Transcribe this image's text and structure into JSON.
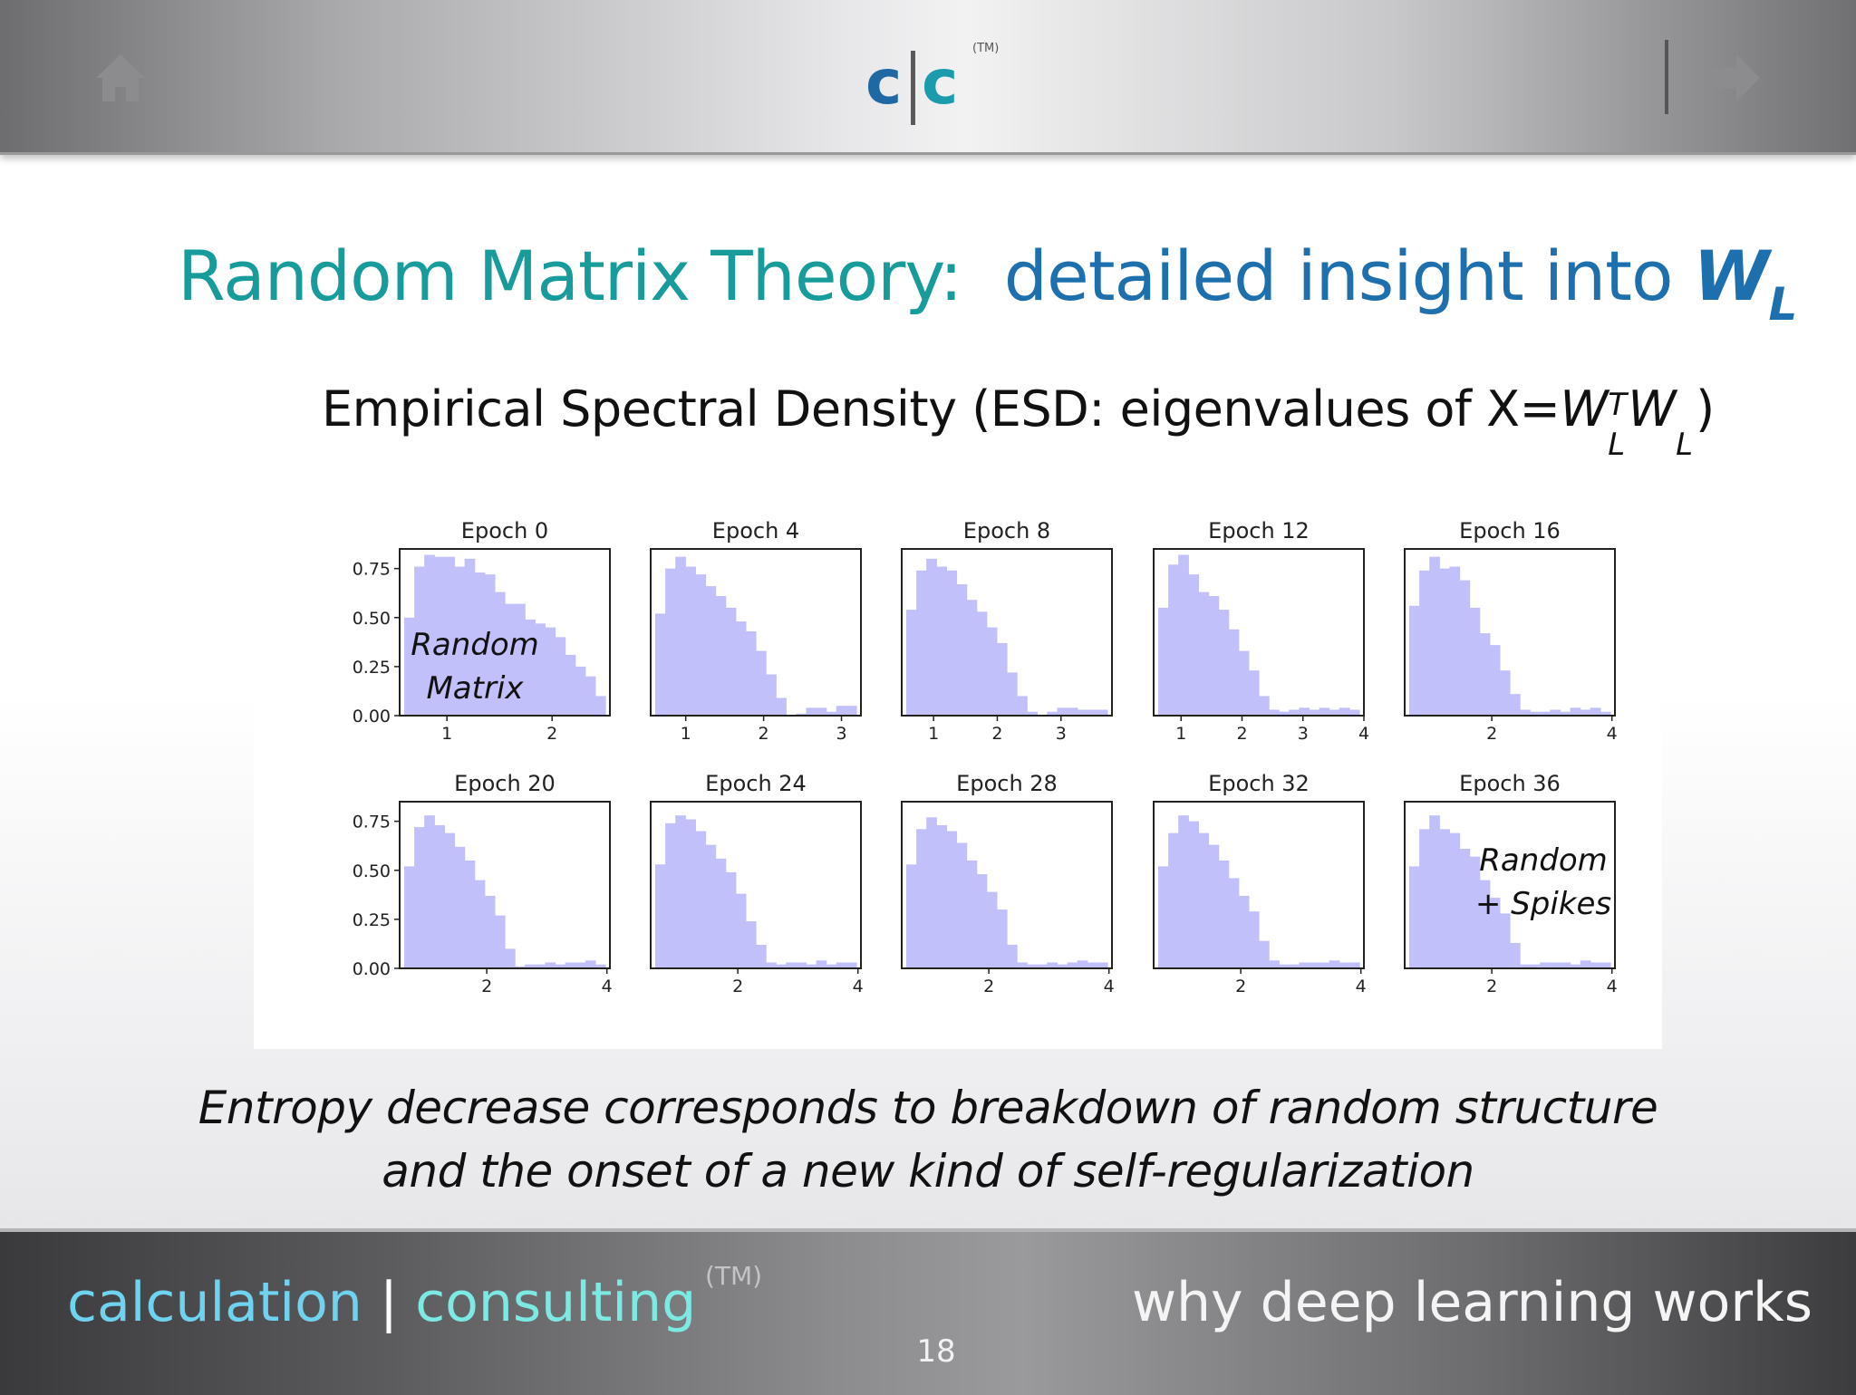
{
  "header": {
    "logo_left": "c",
    "logo_right": "c",
    "logo_tm": "(TM)",
    "home_icon": "home-icon",
    "next_icon": "arrow-right-icon"
  },
  "slide": {
    "title_part1": "Random Matrix Theory:",
    "title_part2": "detailed insight into",
    "title_symbol": "W",
    "title_sub": "L",
    "subtitle_text": "Empirical Spectral Density (ESD: eigenvalues of X=",
    "subtitle_w1": "W",
    "subtitle_sup": "T",
    "subtitle_sub1": "L",
    "subtitle_w2": "W",
    "subtitle_sub2": "L",
    "subtitle_close": ")",
    "caption_line1": "Entropy decrease corresponds to breakdown of random structure",
    "caption_line2": "and the onset of a new kind of self-regularization"
  },
  "footer": {
    "left_part1": "calculation",
    "separator": "|",
    "left_part2": "consulting",
    "tm": "(TM)",
    "right_text": "why deep learning works",
    "page_number": "18"
  },
  "colors": {
    "histogram_fill": "#c1c0fb",
    "title_teal": "#179b9b",
    "title_blue": "#1e6fad"
  },
  "chart_data": {
    "type": "bar",
    "layout": "2x5 grid of histograms",
    "yticks_row1": [
      "0.75",
      "0.50",
      "0.25",
      "0.00"
    ],
    "yticks_row2": [
      "0.75",
      "0.50",
      "0.25",
      "0.00"
    ],
    "ylim": [
      0,
      0.85
    ],
    "panels": [
      {
        "title": "Epoch 0",
        "xlim": [
          0.55,
          2.55
        ],
        "xticks": [
          1,
          2
        ],
        "values": [
          0.5,
          0.76,
          0.82,
          0.81,
          0.81,
          0.76,
          0.8,
          0.73,
          0.72,
          0.63,
          0.57,
          0.57,
          0.49,
          0.47,
          0.45,
          0.4,
          0.31,
          0.25,
          0.2,
          0.1
        ],
        "annotation": [
          "Random",
          "Matrix"
        ]
      },
      {
        "title": "Epoch 4",
        "xlim": [
          0.55,
          3.25
        ],
        "xticks": [
          1,
          2,
          3
        ],
        "values": [
          0.52,
          0.75,
          0.81,
          0.76,
          0.72,
          0.66,
          0.61,
          0.55,
          0.48,
          0.43,
          0.33,
          0.21,
          0.09,
          0,
          0.01,
          0.04,
          0.04,
          0.02,
          0.05,
          0.05
        ]
      },
      {
        "title": "Epoch 8",
        "xlim": [
          0.5,
          3.8
        ],
        "xticks": [
          1,
          2,
          3
        ],
        "values": [
          0.54,
          0.74,
          0.8,
          0.76,
          0.74,
          0.67,
          0.59,
          0.53,
          0.45,
          0.37,
          0.22,
          0.1,
          0.02,
          0,
          0.02,
          0.04,
          0.04,
          0.03,
          0.03,
          0.03
        ]
      },
      {
        "title": "Epoch 12",
        "xlim": [
          0.55,
          4.0
        ],
        "xticks": [
          1,
          2,
          3,
          4
        ],
        "values": [
          0.55,
          0.77,
          0.82,
          0.72,
          0.63,
          0.61,
          0.54,
          0.44,
          0.33,
          0.23,
          0.1,
          0.03,
          0.02,
          0.03,
          0.04,
          0.03,
          0.04,
          0.03,
          0.04,
          0.03
        ]
      },
      {
        "title": "Epoch 16",
        "xlim": [
          0.55,
          4.05
        ],
        "xticks": [
          2,
          4
        ],
        "values": [
          0.56,
          0.74,
          0.81,
          0.75,
          0.76,
          0.69,
          0.55,
          0.42,
          0.36,
          0.23,
          0.11,
          0.03,
          0.02,
          0.02,
          0.03,
          0.02,
          0.04,
          0.03,
          0.04,
          0.02
        ]
      },
      {
        "title": "Epoch 20",
        "xlim": [
          0.55,
          4.05
        ],
        "xticks": [
          2,
          4
        ],
        "values": [
          0.52,
          0.72,
          0.78,
          0.73,
          0.69,
          0.62,
          0.55,
          0.45,
          0.37,
          0.27,
          0.1,
          0.01,
          0.02,
          0.02,
          0.03,
          0.02,
          0.03,
          0.03,
          0.04,
          0.02
        ]
      },
      {
        "title": "Epoch 24",
        "xlim": [
          0.55,
          4.05
        ],
        "xticks": [
          2,
          4
        ],
        "values": [
          0.53,
          0.74,
          0.78,
          0.76,
          0.7,
          0.63,
          0.56,
          0.49,
          0.38,
          0.24,
          0.12,
          0.03,
          0.02,
          0.03,
          0.03,
          0.02,
          0.04,
          0.02,
          0.03,
          0.03
        ]
      },
      {
        "title": "Epoch 28",
        "xlim": [
          0.55,
          4.05
        ],
        "xticks": [
          2,
          4
        ],
        "values": [
          0.53,
          0.71,
          0.77,
          0.73,
          0.7,
          0.64,
          0.55,
          0.48,
          0.39,
          0.3,
          0.12,
          0.03,
          0.02,
          0.02,
          0.03,
          0.02,
          0.03,
          0.04,
          0.03,
          0.03
        ]
      },
      {
        "title": "Epoch 32",
        "xlim": [
          0.55,
          4.05
        ],
        "xticks": [
          2,
          4
        ],
        "values": [
          0.52,
          0.69,
          0.78,
          0.75,
          0.69,
          0.63,
          0.55,
          0.46,
          0.37,
          0.29,
          0.14,
          0.04,
          0.02,
          0.02,
          0.03,
          0.03,
          0.03,
          0.04,
          0.03,
          0.03
        ]
      },
      {
        "title": "Epoch 36",
        "xlim": [
          0.55,
          4.05
        ],
        "xticks": [
          2,
          4
        ],
        "values": [
          0.52,
          0.71,
          0.78,
          0.71,
          0.69,
          0.61,
          0.57,
          0.45,
          0.36,
          0.28,
          0.13,
          0.02,
          0.02,
          0.03,
          0.03,
          0.03,
          0.02,
          0.04,
          0.03,
          0.03
        ],
        "annotation": [
          "Random",
          "+ Spikes"
        ]
      }
    ]
  }
}
